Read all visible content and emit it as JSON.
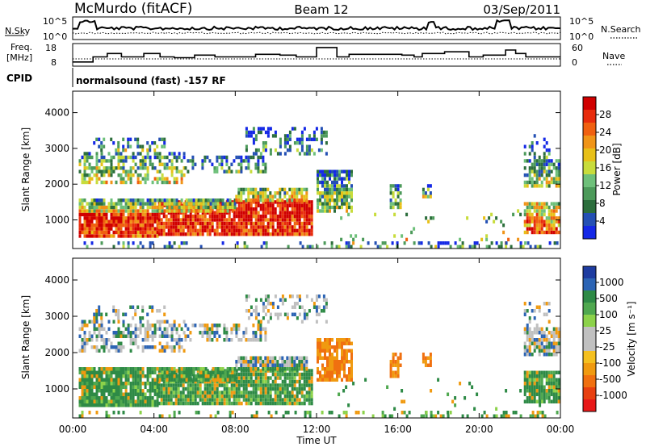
{
  "header": {
    "station": "McMurdo (fitACF)",
    "beam": "Beam 12",
    "date": "03/Sep/2011"
  },
  "noise_panel": {
    "left_label": "N.Sky",
    "right_label": "N.Search",
    "left_ticks": [
      "10^5",
      "10^0"
    ],
    "right_ticks": [
      "10^5",
      "10^0"
    ]
  },
  "freq_panel": {
    "left_label_line1": "Freq.",
    "left_label_line2": "[MHz]",
    "right_label": "Nave",
    "left_ticks": [
      "18",
      "8"
    ],
    "right_ticks": [
      "60",
      "0"
    ],
    "freq_series": {
      "hours": [
        0,
        1,
        1.7,
        2.4,
        3.5,
        4.3,
        5,
        6,
        7,
        8.5,
        9,
        10.2,
        11,
        11.6,
        12,
        13,
        13.6,
        16.2,
        16.8,
        17.2,
        18.3,
        19.5,
        20.2,
        21.3,
        21.8,
        22.3,
        24
      ],
      "mhz": [
        10.5,
        13.5,
        15.5,
        13.5,
        15.5,
        13.5,
        13,
        14.5,
        13.5,
        13.5,
        15,
        14.5,
        13.5,
        13.5,
        19,
        13.5,
        15,
        14.5,
        13.5,
        15.5,
        16.5,
        13.5,
        14.5,
        17.5,
        15.5,
        13.5,
        13.5
      ]
    }
  },
  "cpid": {
    "label": "CPID",
    "text": "normalsound (fast) -157 RF"
  },
  "chart_data": [
    {
      "type": "heatmap",
      "name": "power",
      "ylabel": "Slant Range [km]",
      "xlabel": "Time UT",
      "x_range_hours": [
        0,
        24
      ],
      "y_range_km": [
        200,
        4600
      ],
      "y_ticks": [
        "4000",
        "3000",
        "2000",
        "1000"
      ],
      "colorbar_label": "Power [dB]",
      "colorbar_ticks": [
        "28",
        "24",
        "20",
        "16",
        "12",
        "8",
        "4"
      ],
      "colors": [
        "#1428e6",
        "#2450b4",
        "#2c6e3c",
        "#4c9a5a",
        "#6ec07a",
        "#c8dc3c",
        "#e8c018",
        "#f09418",
        "#f06010",
        "#e82c0c",
        "#d00000"
      ]
    },
    {
      "type": "heatmap",
      "name": "velocity",
      "ylabel": "Slant Range [km]",
      "xlabel": "Time UT",
      "x_range_hours": [
        0,
        24
      ],
      "y_range_km": [
        200,
        4600
      ],
      "y_ticks": [
        "4000",
        "3000",
        "2000",
        "1000"
      ],
      "colorbar_label": "Velocity [m s⁻¹]",
      "colorbar_ticks": [
        "1000",
        "500",
        "100",
        "25",
        "-25",
        "-100",
        "-500",
        "-1000"
      ],
      "colors": [
        "#1e3ca0",
        "#2c64b4",
        "#2e8a46",
        "#4fa84f",
        "#8cd24a",
        "#c0c0c0",
        "#c0c0c0",
        "#f4c020",
        "#f09a10",
        "#f07010",
        "#e84010",
        "#e81818"
      ]
    }
  ],
  "time_axis": {
    "label": "Time UT",
    "ticks": [
      "00:00",
      "04:00",
      "08:00",
      "12:00",
      "16:00",
      "20:00",
      "00:00"
    ]
  }
}
